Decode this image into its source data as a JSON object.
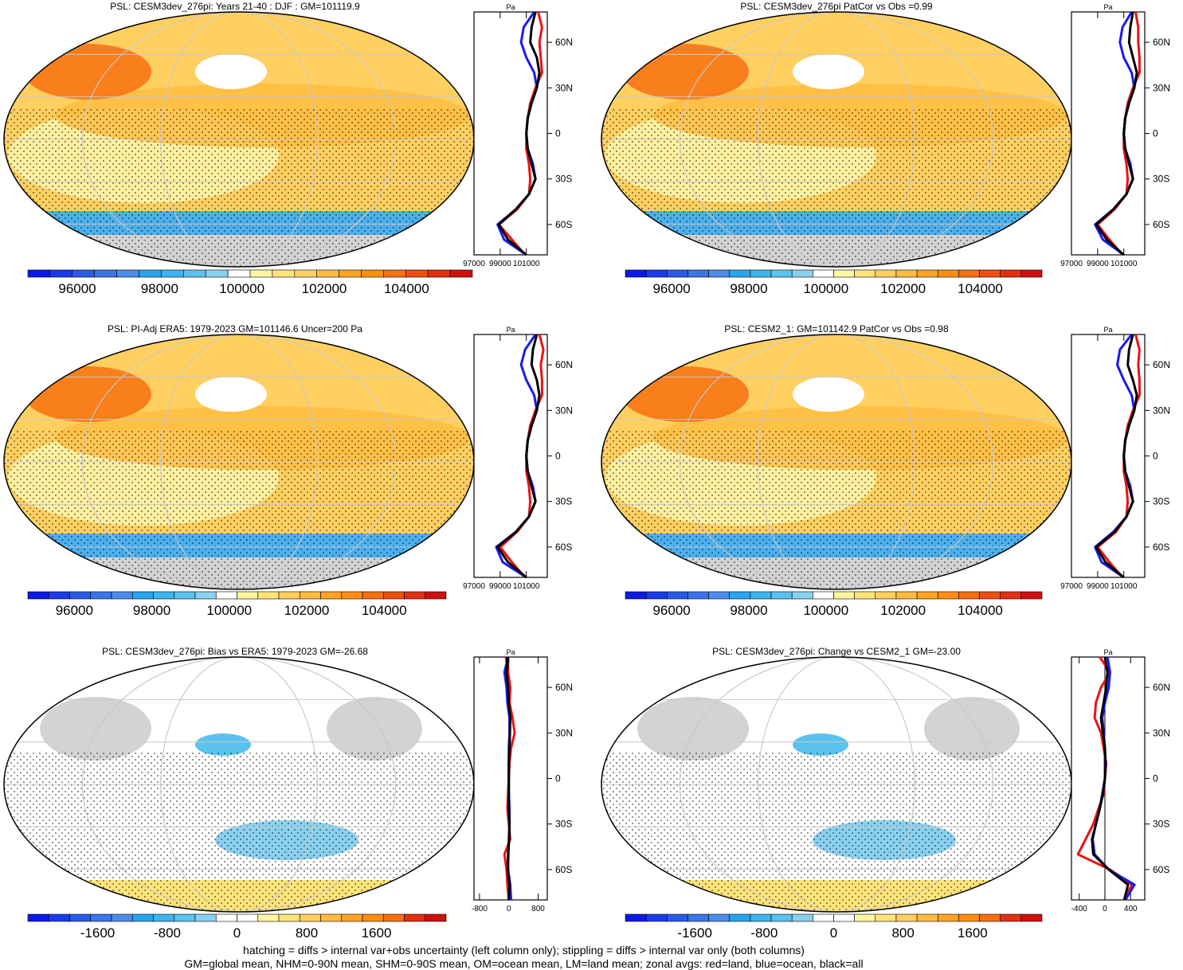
{
  "figure": {
    "footnote_line1": "hatching = diffs > internal var+obs uncertainty (left column only); stippling = diffs > internal var only (both columns)",
    "footnote_line2": "GM=global mean, NHM=0-90N mean, SHM=0-90S mean, OM=ocean mean, LM=land mean; zonal avgs: red=land, blue=ocean, black=all"
  },
  "colors": {
    "land": "#ee1111",
    "ocean": "#1a1aee",
    "all": "#000000",
    "missing": "#d3d3d3",
    "graticule": "#c8c8c8"
  },
  "chart_data": [
    {
      "type": "heatmap",
      "id": "p1",
      "title": "PSL: CESM3dev_276pi: Years 21-40 : DJF : GM=101119.9",
      "scale": "full",
      "colorbar_ticks": [
        "96000",
        "98000",
        "100000",
        "102000",
        "104000"
      ],
      "colorbar_range": [
        94800,
        105600
      ],
      "profile": {
        "xlabel": "Pa",
        "x_ticks": [
          "97000",
          "99000",
          "101000"
        ],
        "xlim": [
          97000,
          102600
        ],
        "ylabels": [
          "60N",
          "30N",
          "0",
          "30S",
          "60S"
        ],
        "lat": [
          80,
          70,
          60,
          50,
          40,
          30,
          20,
          10,
          0,
          -10,
          -20,
          -30,
          -40,
          -50,
          -60,
          -70,
          -80
        ],
        "all": [
          101700,
          101400,
          101300,
          101800,
          102000,
          101800,
          101400,
          101100,
          101000,
          101100,
          101400,
          101700,
          101200,
          100200,
          98900,
          99600,
          101000
        ],
        "land": [
          101900,
          102200,
          102000,
          102100,
          102200,
          101700,
          101300,
          101100,
          101000,
          101000,
          101200,
          101300,
          101200,
          100300,
          98900,
          99900,
          100900
        ],
        "ocean": [
          101600,
          100800,
          100600,
          101000,
          101600,
          101800,
          101400,
          101100,
          101000,
          101100,
          101500,
          101700,
          101200,
          100200,
          98800,
          99300,
          101000
        ]
      }
    },
    {
      "type": "heatmap",
      "id": "p2",
      "title": "PSL: CESM3dev_276pi PatCor vs Obs =0.99",
      "scale": "full",
      "colorbar_ticks": [
        "96000",
        "98000",
        "100000",
        "102000",
        "104000"
      ],
      "colorbar_range": [
        94800,
        105600
      ],
      "profile": {
        "xlabel": "Pa",
        "x_ticks": [
          "97000",
          "99000",
          "101000"
        ],
        "xlim": [
          97000,
          102600
        ],
        "ylabels": [
          "60N",
          "30N",
          "0",
          "30S",
          "60S"
        ],
        "lat": [
          80,
          70,
          60,
          50,
          40,
          30,
          20,
          10,
          0,
          -10,
          -20,
          -30,
          -40,
          -50,
          -60,
          -70,
          -80
        ],
        "all": [
          101700,
          101500,
          101400,
          101700,
          102000,
          101800,
          101400,
          101100,
          101000,
          101100,
          101400,
          101700,
          101200,
          100200,
          98900,
          99700,
          101000
        ],
        "land": [
          101900,
          102100,
          102100,
          102200,
          102200,
          101700,
          101300,
          101100,
          101000,
          101000,
          101200,
          101300,
          101200,
          100300,
          99000,
          99900,
          100900
        ],
        "ocean": [
          101600,
          100900,
          100700,
          101000,
          101600,
          101800,
          101400,
          101100,
          101000,
          101100,
          101500,
          101700,
          101200,
          100200,
          98800,
          99400,
          101000
        ]
      }
    },
    {
      "type": "heatmap",
      "id": "p3",
      "title": "PSL: PI-Adj ERA5: 1979-2023 GM=101146.6 Uncer=200 Pa",
      "scale": "full",
      "colorbar_ticks": [
        "96000",
        "98000",
        "100000",
        "102000",
        "104000"
      ],
      "colorbar_range": [
        94800,
        105600
      ],
      "profile": {
        "xlabel": "Pa",
        "x_ticks": [
          "97000",
          "99000",
          "101000"
        ],
        "xlim": [
          97000,
          102600
        ],
        "ylabels": [
          "60N",
          "30N",
          "0",
          "30S",
          "60S"
        ],
        "lat": [
          80,
          70,
          60,
          50,
          40,
          30,
          20,
          10,
          0,
          -10,
          -20,
          -30,
          -40,
          -50,
          -60,
          -70,
          -80
        ],
        "all": [
          101800,
          101500,
          101400,
          101800,
          102000,
          101800,
          101400,
          101100,
          101000,
          101100,
          101400,
          101700,
          101200,
          100200,
          98800,
          99600,
          101000
        ],
        "land": [
          102000,
          102300,
          102100,
          102200,
          102200,
          101700,
          101300,
          101100,
          101000,
          101000,
          101200,
          101300,
          101200,
          100300,
          99000,
          99900,
          100900
        ],
        "ocean": [
          101700,
          100900,
          100600,
          101000,
          101600,
          101800,
          101400,
          101100,
          101000,
          101100,
          101500,
          101700,
          101200,
          100200,
          98700,
          99200,
          101000
        ]
      }
    },
    {
      "type": "heatmap",
      "id": "p4",
      "title": "PSL: CESM2_1: GM=101142.9 PatCor vs Obs =0.98",
      "scale": "full",
      "colorbar_ticks": [
        "96000",
        "98000",
        "100000",
        "102000",
        "104000"
      ],
      "colorbar_range": [
        94800,
        105600
      ],
      "profile": {
        "xlabel": "Pa",
        "x_ticks": [
          "97000",
          "99000",
          "101000"
        ],
        "xlim": [
          97000,
          102600
        ],
        "ylabels": [
          "60N",
          "30N",
          "0",
          "30S",
          "60S"
        ],
        "lat": [
          80,
          70,
          60,
          50,
          40,
          30,
          20,
          10,
          0,
          -10,
          -20,
          -30,
          -40,
          -50,
          -60,
          -70,
          -80
        ],
        "all": [
          101700,
          101400,
          101300,
          101700,
          102000,
          101800,
          101400,
          101100,
          101000,
          101100,
          101400,
          101700,
          101200,
          100300,
          98900,
          99600,
          101000
        ],
        "land": [
          101900,
          102200,
          102100,
          102200,
          102200,
          101700,
          101300,
          101100,
          101000,
          101000,
          101200,
          101300,
          101200,
          100400,
          99000,
          99900,
          100900
        ],
        "ocean": [
          101600,
          100700,
          100500,
          101000,
          101600,
          101800,
          101400,
          101100,
          101000,
          101100,
          101500,
          101700,
          101200,
          100200,
          98800,
          99300,
          101000
        ]
      }
    },
    {
      "type": "heatmap",
      "id": "p5",
      "title": "PSL: CESM3dev_276pi: Bias vs ERA5: 1979-2023 GM=-26.68",
      "scale": "diff",
      "colorbar_ticks": [
        "-1600",
        "-800",
        "0",
        "800",
        "1600"
      ],
      "colorbar_range": [
        -2400,
        2400
      ],
      "profile": {
        "xlabel": "Pa",
        "x_ticks": [
          "-800",
          "0",
          "800"
        ],
        "xlim": [
          -950,
          1050
        ],
        "ylabels": [
          "60N",
          "30N",
          "0",
          "30S",
          "60S"
        ],
        "lat": [
          80,
          70,
          60,
          50,
          40,
          30,
          20,
          10,
          0,
          -10,
          -20,
          -30,
          -40,
          -50,
          -60,
          -70,
          -80
        ],
        "all": [
          -40,
          -60,
          -20,
          0,
          40,
          30,
          20,
          0,
          0,
          0,
          0,
          20,
          10,
          -20,
          -30,
          20,
          0
        ],
        "land": [
          -80,
          -20,
          40,
          20,
          100,
          160,
          60,
          20,
          0,
          -20,
          -40,
          0,
          40,
          -120,
          -60,
          -40,
          0
        ],
        "ocean": [
          -20,
          -120,
          -60,
          -40,
          20,
          20,
          0,
          0,
          0,
          0,
          20,
          20,
          0,
          -10,
          -20,
          40,
          60
        ]
      }
    },
    {
      "type": "heatmap",
      "id": "p6",
      "title": "PSL: CESM3dev_276pi: Change vs CESM2_1 GM=-23.00",
      "scale": "diff",
      "colorbar_ticks": [
        "-1600",
        "-800",
        "0",
        "800",
        "1600"
      ],
      "colorbar_range": [
        -2400,
        2400
      ],
      "profile": {
        "xlabel": "Pa",
        "x_ticks": [
          "-400",
          "0",
          "400"
        ],
        "xlim": [
          -520,
          620
        ],
        "ylabels": [
          "60N",
          "30N",
          "0",
          "30S",
          "60S"
        ],
        "lat": [
          80,
          70,
          60,
          50,
          40,
          30,
          20,
          10,
          0,
          -10,
          -20,
          -30,
          -40,
          -50,
          -60,
          -70,
          -80
        ],
        "all": [
          0,
          40,
          20,
          -20,
          -60,
          -30,
          0,
          10,
          0,
          -30,
          -80,
          -140,
          -200,
          -180,
          60,
          360,
          300
        ],
        "land": [
          -80,
          80,
          -60,
          -140,
          -160,
          -60,
          -20,
          20,
          0,
          -20,
          -100,
          -180,
          -300,
          -420,
          80,
          420,
          300
        ],
        "ocean": [
          40,
          80,
          60,
          0,
          -40,
          -20,
          0,
          0,
          0,
          -40,
          -80,
          -140,
          -190,
          -160,
          60,
          460,
          320
        ]
      }
    }
  ]
}
